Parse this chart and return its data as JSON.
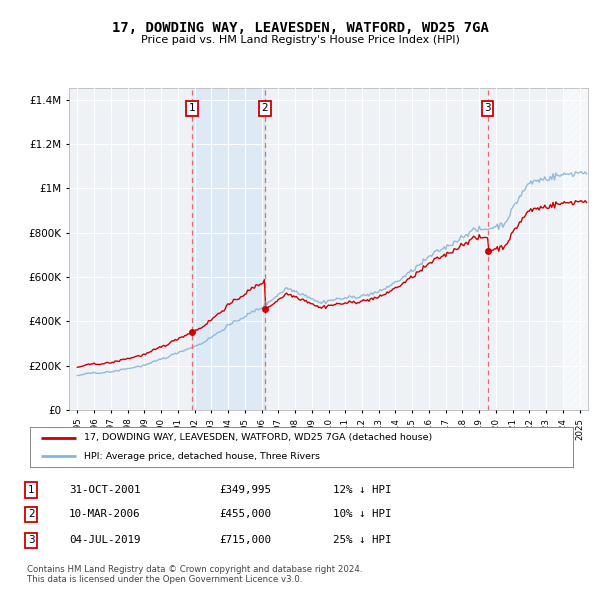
{
  "title": "17, DOWDING WAY, LEAVESDEN, WATFORD, WD25 7GA",
  "subtitle": "Price paid vs. HM Land Registry's House Price Index (HPI)",
  "legend_line1": "17, DOWDING WAY, LEAVESDEN, WATFORD, WD25 7GA (detached house)",
  "legend_line2": "HPI: Average price, detached house, Three Rivers",
  "footer1": "Contains HM Land Registry data © Crown copyright and database right 2024.",
  "footer2": "This data is licensed under the Open Government Licence v3.0.",
  "transactions": [
    {
      "num": 1,
      "date": "31-OCT-2001",
      "price": "£349,995",
      "pct": "12% ↓ HPI",
      "x_year": 2001.83,
      "discount": 0.12
    },
    {
      "num": 2,
      "date": "10-MAR-2006",
      "price": "£455,000",
      "pct": "10% ↓ HPI",
      "x_year": 2006.19,
      "discount": 0.1
    },
    {
      "num": 3,
      "date": "04-JUL-2019",
      "price": "£715,000",
      "pct": "25% ↓ HPI",
      "x_year": 2019.5,
      "discount": 0.25
    }
  ],
  "hpi_color": "#8ab4d4",
  "price_color": "#cc0000",
  "vline_color": "#e06060",
  "band_color": "#dae8f4",
  "background_color": "#ffffff",
  "plot_bg_color": "#eef2f7",
  "ylim": [
    0,
    1450000
  ],
  "xlim_start": 1994.5,
  "xlim_end": 2025.5
}
